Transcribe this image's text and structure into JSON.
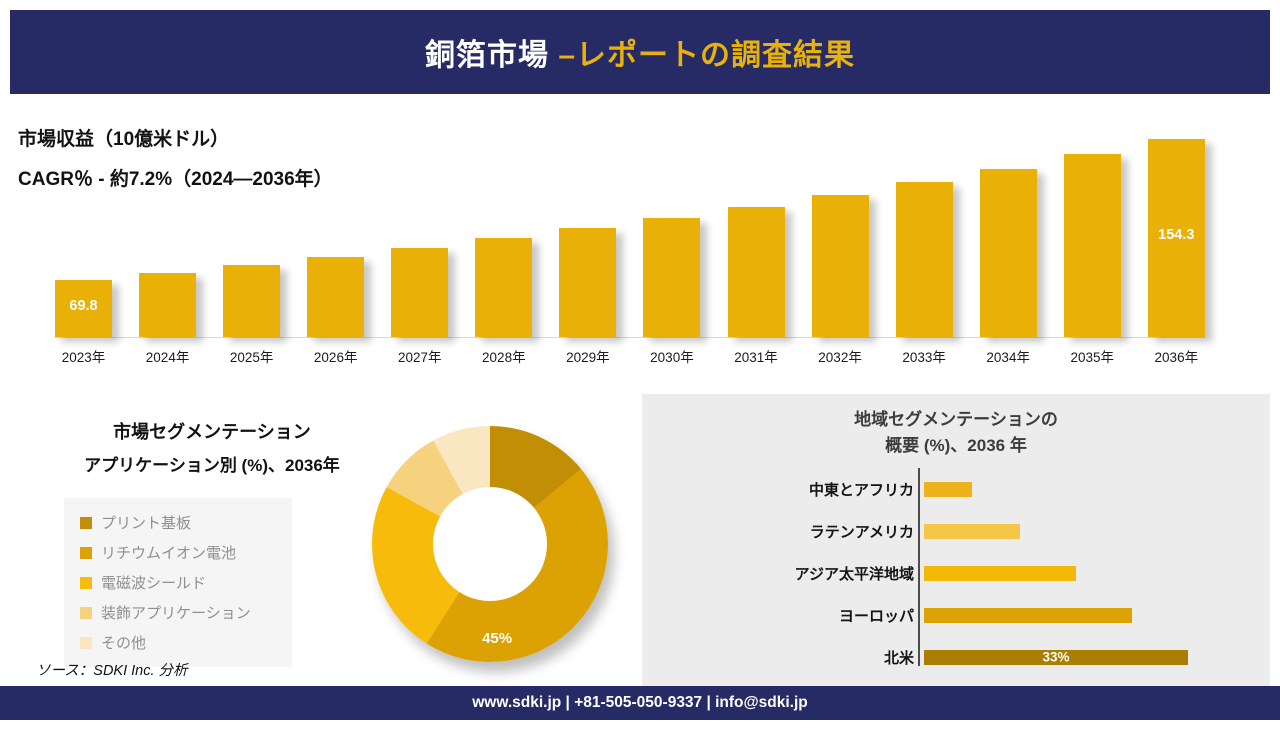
{
  "colors": {
    "navy": "#262b66",
    "gold_accent": "#e9b10c",
    "panel_gray": "#ececec",
    "legend_bg": "#f5f5f5",
    "legend_text": "#8f8f8f"
  },
  "header": {
    "title_main": "銅箔市場",
    "title_accent": " –レポートの調査結果"
  },
  "source_note": "ソース：SDKI Inc. 分析",
  "footer": {
    "text": "www.sdki.jp | +81-505-050-9337 | info@sdki.jp"
  },
  "chart_data": [
    {
      "id": "revenue",
      "type": "bar",
      "title": "市場収益（10億米ドル）",
      "subtitle": "CAGR％ - 約7.2%（2024―2036年）",
      "ylabel": "10億米ドル",
      "categories": [
        "2023年",
        "2024年",
        "2025年",
        "2026年",
        "2027年",
        "2028年",
        "2029年",
        "2030年",
        "2031年",
        "2032年",
        "2033年",
        "2034年",
        "2035年",
        "2036年"
      ],
      "values": [
        69.8,
        74.2,
        78.9,
        83.8,
        89.1,
        94.7,
        100.7,
        107.0,
        113.8,
        120.9,
        128.5,
        136.6,
        145.2,
        154.3
      ],
      "shown_labels": {
        "0": "69.8",
        "13": "154.3"
      },
      "bar_color": "#e9b008",
      "grid": false,
      "legend": "none"
    },
    {
      "id": "application-segmentation",
      "type": "pie",
      "donut": true,
      "title": "市場セグメンテーション",
      "subtitle": "アプリケーション別 (%)、2036年",
      "labels": [
        "プリント基板",
        "リチウムイオン電池",
        "電磁波シールド",
        "装飾アプリケーション",
        "その他"
      ],
      "values": [
        14,
        45,
        24,
        9,
        8
      ],
      "colors": [
        "#c28e06",
        "#dca203",
        "#f6bb0b",
        "#f6d27f",
        "#fae6c0"
      ],
      "shown_labels": {
        "1": "45%"
      },
      "legend_position": "left"
    },
    {
      "id": "regional-segmentation",
      "type": "bar",
      "orientation": "horizontal",
      "title": "地域セグメンテーションの",
      "title_line2": "概要 (%)、2036 年",
      "categories": [
        "中東とアフリカ",
        "ラテンアメリカ",
        "アジア太平洋地域",
        "ヨーロッパ",
        "北米"
      ],
      "values": [
        6,
        12,
        19,
        26,
        33
      ],
      "colors": [
        "#edb31b",
        "#f5c648",
        "#f3b705",
        "#dca305",
        "#aa7d03"
      ],
      "shown_labels": {
        "4": "33%"
      },
      "grid": false
    }
  ]
}
